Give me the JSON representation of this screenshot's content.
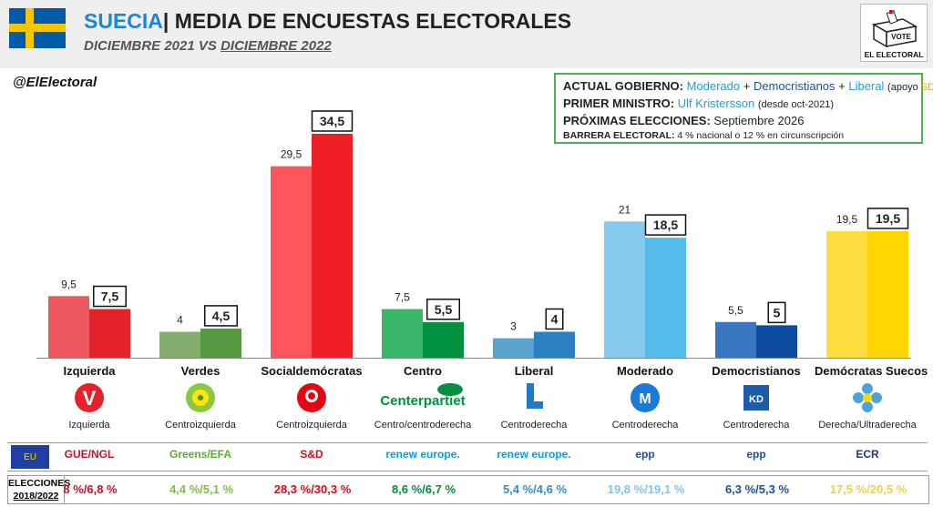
{
  "header": {
    "country": "SUECIA",
    "title_rest": "| MEDIA DE ENCUESTAS ELECTORALES",
    "sub_from": "DICIEMBRE 2021",
    "sub_vs": "VS",
    "sub_to": "DICIEMBRE 2022",
    "logo_vote": "VOTE",
    "logo_text": "EL ELECTORAL"
  },
  "handle": "@ElElectoral",
  "info": {
    "gov_label": "ACTUAL GOBIERNO:",
    "gov_p1": "Moderado",
    "plus": "+",
    "gov_p2": "Democristianos",
    "gov_p3": "Liberal",
    "gov_support_pre": "(apoyo ",
    "gov_support_party": "SD",
    "gov_support_post": ")",
    "pm_label": "PRIMER MINISTRO:",
    "pm_name": "Ulf Kristersson",
    "pm_since": "(desde oct-2021)",
    "next_label": "PRÓXIMAS ELECCIONES:",
    "next_value": "Septiembre 2026",
    "barrier_label": "BARRERA ELECTORAL:",
    "barrier_value": "4 % nacional o 12 % en circunscripción"
  },
  "parties": [
    {
      "name": "Izquierda",
      "ideology": "Izquierda",
      "logo": "V",
      "eu": "GUE/NGL",
      "eu_color": "#c8102e",
      "election": "8 %/6,8 %",
      "el_color": "#c8102e"
    },
    {
      "name": "Verdes",
      "ideology": "Centroizquierda",
      "logo": "MP",
      "eu": "Greens/EFA",
      "eu_color": "#57b12d",
      "election": "4,4 %/5,1 %",
      "el_color": "#7dc03f"
    },
    {
      "name": "Socialdemócratas",
      "ideology": "Centroizquierda",
      "logo": "S",
      "eu": "S&D",
      "eu_color": "#e30613",
      "election": "28,3 %/30,3 %",
      "el_color": "#e30613"
    },
    {
      "name": "Centro",
      "ideology": "Centro/centroderecha",
      "logo": "Centerpartiet",
      "eu": "renew europe.",
      "eu_color": "#00a3e0",
      "election": "8,6 %/6,7 %",
      "el_color": "#008f39"
    },
    {
      "name": "Liberal",
      "ideology": "Centroderecha",
      "logo": "L",
      "eu": "renew europe.",
      "eu_color": "#00a3e0",
      "election": "5,4 %/4,6 %",
      "el_color": "#2b8fd0"
    },
    {
      "name": "Moderado",
      "ideology": "Centroderecha",
      "logo": "M",
      "eu": "epp",
      "eu_color": "#1a4ea0",
      "election": "19,8 %/19,1 %",
      "el_color": "#7fc4ec"
    },
    {
      "name": "Democristianos",
      "ideology": "Centroderecha",
      "logo": "KD",
      "eu": "epp",
      "eu_color": "#1a4ea0",
      "election": "6,3 %/5,3 %",
      "el_color": "#1d4f9c"
    },
    {
      "name": "Demócratas Suecos",
      "ideology": "Derecha/Ultraderecha",
      "logo": "SD",
      "eu": "ECR",
      "eu_color": "#1e3a78",
      "election": "17,5 %/20,5 %",
      "el_color": "#f2d13a"
    }
  ],
  "eu_label": "EU",
  "election_label_1": "ELECCIONES",
  "election_label_2": "2018/2022",
  "chart_data": {
    "type": "bar",
    "categories": [
      "Izquierda",
      "Verdes",
      "Socialdemócratas",
      "Centro",
      "Liberal",
      "Moderado",
      "Democristianos",
      "Demócratas Suecos"
    ],
    "series": [
      {
        "name": "DICIEMBRE 2021",
        "values": [
          9.5,
          4,
          29.5,
          7.5,
          3,
          21,
          5.5,
          19.5
        ],
        "labels": [
          "9,5",
          "4",
          "29,5",
          "7,5",
          "3",
          "21",
          "5,5",
          "19,5"
        ],
        "colors": [
          "#ec5a5f",
          "#84ad6e",
          "#ff555c",
          "#3ab66b",
          "#5aa3d0",
          "#86c9ef",
          "#3a76c2",
          "#ffde3f"
        ]
      },
      {
        "name": "DICIEMBRE 2022",
        "values": [
          7.5,
          4.5,
          34.5,
          5.5,
          4,
          18.5,
          5,
          19.5
        ],
        "labels": [
          "7,5",
          "4,5",
          "34,5",
          "5,5",
          "4",
          "18,5",
          "5",
          "19,5"
        ],
        "colors": [
          "#e3222b",
          "#559841",
          "#ee1f26",
          "#00913e",
          "#2a80c1",
          "#55bdea",
          "#0d4b9f",
          "#ffd503"
        ]
      }
    ],
    "ylim": [
      0,
      35
    ],
    "grid": false,
    "legend": "none"
  }
}
